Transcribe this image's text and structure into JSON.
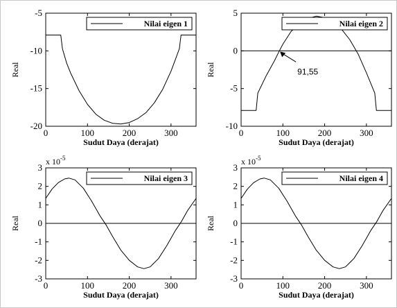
{
  "chart_data": [
    {
      "type": "line",
      "title": "",
      "xlabel": "Sudut Daya (derajat)",
      "ylabel": "Real",
      "xlim": [
        0,
        360
      ],
      "ylim": [
        -20,
        -5
      ],
      "xticks": [
        "0",
        "100",
        "200",
        "300"
      ],
      "yticks": [
        "-5",
        "-10",
        "-15",
        "-20"
      ],
      "y_multiplier": "",
      "legend": "top-right",
      "series": [
        {
          "name": "Nilai eigen 1",
          "x": [
            0,
            36,
            40,
            50,
            60,
            80,
            100,
            120,
            140,
            160,
            180,
            200,
            220,
            240,
            260,
            280,
            300,
            310,
            320,
            324,
            360
          ],
          "y": [
            -7.9,
            -7.9,
            -9.7,
            -11.6,
            -13.0,
            -15.3,
            -17.1,
            -18.4,
            -19.2,
            -19.6,
            -19.7,
            -19.5,
            -19.0,
            -18.2,
            -16.9,
            -15.1,
            -12.7,
            -11.2,
            -9.7,
            -7.9,
            -7.9
          ]
        }
      ],
      "annotations": []
    },
    {
      "type": "line",
      "title": "",
      "xlabel": "Sudut Daya (derajat)",
      "ylabel": "Real",
      "xlim": [
        0,
        360
      ],
      "ylim": [
        -10,
        5
      ],
      "xticks": [
        "0",
        "100",
        "200",
        "300"
      ],
      "yticks": [
        "5",
        "0",
        "-5",
        "-10"
      ],
      "y_multiplier": "",
      "legend": "top-right",
      "series": [
        {
          "name": "Nilai eigen 2",
          "x": [
            0,
            36,
            40,
            60,
            80,
            91.55,
            100,
            120,
            140,
            160,
            180,
            200,
            220,
            240,
            260,
            280,
            300,
            320,
            324,
            360
          ],
          "y": [
            -7.9,
            -7.9,
            -5.6,
            -3.3,
            -1.3,
            0,
            0.9,
            2.6,
            3.6,
            4.3,
            4.6,
            4.4,
            3.9,
            2.9,
            1.5,
            -0.4,
            -2.9,
            -5.6,
            -7.9,
            -7.9
          ]
        },
        {
          "name": "",
          "x": [
            0,
            360
          ],
          "y": [
            0,
            0
          ]
        }
      ],
      "annotations": [
        {
          "text": "91,55",
          "x": 91.55,
          "y": 0
        }
      ]
    },
    {
      "type": "line",
      "title": "",
      "xlabel": "Sudut Daya (derajat)",
      "ylabel": "Real",
      "xlim": [
        0,
        360
      ],
      "ylim": [
        -3,
        3
      ],
      "xticks": [
        "0",
        "100",
        "200",
        "300"
      ],
      "yticks": [
        "3",
        "2",
        "1",
        "0",
        "-1",
        "-2",
        "-3"
      ],
      "y_multiplier": "x 10",
      "y_multiplier_exp": "-5",
      "legend": "top-right",
      "series": [
        {
          "name": "Nilai eigen 3",
          "x": [
            0,
            15,
            30,
            45,
            55,
            70,
            90,
            110,
            130,
            145,
            160,
            180,
            200,
            220,
            235,
            250,
            270,
            290,
            310,
            325,
            340,
            360
          ],
          "y": [
            1.35,
            1.85,
            2.2,
            2.4,
            2.45,
            2.35,
            1.9,
            1.2,
            0.4,
            -0.1,
            -0.7,
            -1.45,
            -2.0,
            -2.35,
            -2.45,
            -2.35,
            -1.9,
            -1.2,
            -0.4,
            0.1,
            0.7,
            1.35
          ]
        },
        {
          "name": "",
          "x": [
            0,
            360
          ],
          "y": [
            0,
            0
          ]
        }
      ],
      "annotations": []
    },
    {
      "type": "line",
      "title": "",
      "xlabel": "Sudut Daya (derajat)",
      "ylabel": "Real",
      "xlim": [
        0,
        360
      ],
      "ylim": [
        -3,
        3
      ],
      "xticks": [
        "0",
        "100",
        "200",
        "300"
      ],
      "yticks": [
        "3",
        "2",
        "1",
        "0",
        "-1",
        "-2",
        "-3"
      ],
      "y_multiplier": "x 10",
      "y_multiplier_exp": "-5",
      "legend": "top-right",
      "series": [
        {
          "name": "Nilai eigen 4",
          "x": [
            0,
            15,
            30,
            45,
            55,
            70,
            90,
            110,
            130,
            145,
            160,
            180,
            200,
            220,
            235,
            250,
            270,
            290,
            310,
            325,
            340,
            360
          ],
          "y": [
            1.35,
            1.85,
            2.2,
            2.4,
            2.45,
            2.35,
            1.9,
            1.2,
            0.4,
            -0.1,
            -0.7,
            -1.45,
            -2.0,
            -2.35,
            -2.45,
            -2.35,
            -1.9,
            -1.2,
            -0.4,
            0.1,
            0.7,
            1.35
          ]
        },
        {
          "name": "",
          "x": [
            0,
            360
          ],
          "y": [
            0,
            0
          ]
        }
      ],
      "annotations": []
    }
  ]
}
